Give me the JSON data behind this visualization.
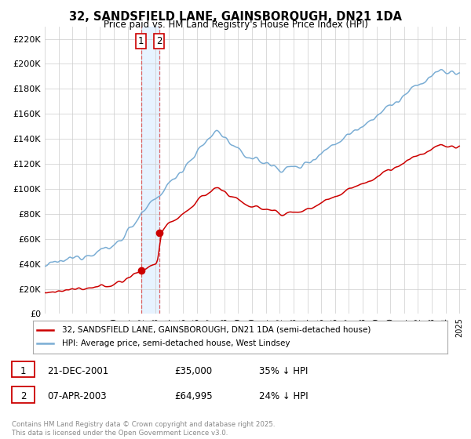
{
  "title": "32, SANDSFIELD LANE, GAINSBOROUGH, DN21 1DA",
  "subtitle": "Price paid vs. HM Land Registry's House Price Index (HPI)",
  "ylim": [
    0,
    230000
  ],
  "yticks": [
    0,
    20000,
    40000,
    60000,
    80000,
    100000,
    120000,
    140000,
    160000,
    180000,
    200000,
    220000
  ],
  "ytick_labels": [
    "£0",
    "£20K",
    "£40K",
    "£60K",
    "£80K",
    "£100K",
    "£120K",
    "£140K",
    "£160K",
    "£180K",
    "£200K",
    "£220K"
  ],
  "hpi_color": "#7aadd4",
  "price_color": "#cc0000",
  "marker_color": "#cc0000",
  "vline_color": "#dd4444",
  "vfill_color": "#ddeeff",
  "sale1_date": 2001.97,
  "sale1_price": 35000,
  "sale2_date": 2003.27,
  "sale2_price": 64995,
  "legend_line1": "32, SANDSFIELD LANE, GAINSBOROUGH, DN21 1DA (semi-detached house)",
  "legend_line2": "HPI: Average price, semi-detached house, West Lindsey",
  "footer": "Contains HM Land Registry data © Crown copyright and database right 2025.\nThis data is licensed under the Open Government Licence v3.0.",
  "background_color": "#ffffff",
  "grid_color": "#cccccc",
  "xlim_start": 1995,
  "xlim_end": 2025.5
}
